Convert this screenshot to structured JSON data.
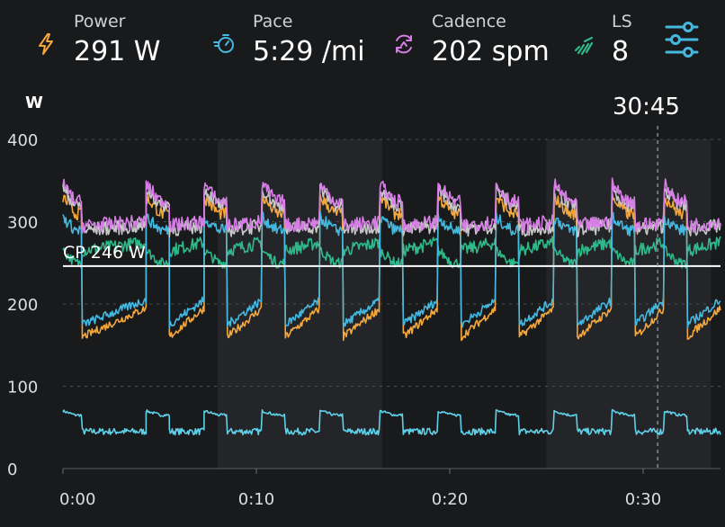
{
  "metrics": [
    {
      "name": "power",
      "label": "Power",
      "value": "291 W",
      "icon": "lightning-icon",
      "color": "#f4a73c"
    },
    {
      "name": "pace",
      "label": "Pace",
      "value": "5:29 /mi",
      "icon": "stopwatch-icon",
      "color": "#45b8e0"
    },
    {
      "name": "cadence",
      "label": "Cadence",
      "value": "202 spm",
      "icon": "cadence-cycle-icon",
      "color": "#d67ee6"
    },
    {
      "name": "ls",
      "label": "LS",
      "value": "8",
      "icon": "leg-spring-icon",
      "color": "#2fb88a"
    }
  ],
  "settings_icon": "settings-sliders-icon",
  "accent_color": "#45b8e0",
  "cursor_time": "30:45",
  "chart_data": {
    "type": "line",
    "ylabel": "W",
    "ylim": [
      0,
      400
    ],
    "yticks": [
      0,
      100,
      200,
      300,
      400
    ],
    "xlim": [
      0,
      34
    ],
    "xticks": [
      0,
      10,
      20,
      30
    ],
    "xtick_labels": [
      "0:00",
      "0:10",
      "0:20",
      "0:30"
    ],
    "x_unit": "minutes",
    "cursor_x": 30.75,
    "reference_line": {
      "label": "CP 246 W",
      "value": 246
    },
    "shaded_bands": [
      [
        8,
        16.5
      ],
      [
        25,
        33.5
      ]
    ],
    "intervals": {
      "starts": [
        0,
        4.3,
        7.3,
        10.3,
        13.3,
        16.4,
        19.4,
        22.4,
        25.4,
        28.4,
        31.1
      ],
      "work_end": [
        1.0,
        5.5,
        8.5,
        11.5,
        14.5,
        17.6,
        20.6,
        23.6,
        26.6,
        29.6,
        32.3
      ]
    },
    "series": [
      {
        "color": "#f4a73c",
        "work": 310,
        "work_peak": 330,
        "recovery": 160,
        "recovery_end": 195
      },
      {
        "color": "#45b8e0",
        "work": 290,
        "work_peak": 305,
        "recovery": 175,
        "recovery_end": 205
      },
      {
        "color": "#d67ee6",
        "work": 325,
        "work_peak": 345,
        "recovery": 295,
        "recovery_end": 300
      },
      {
        "color": "#c8c8c8",
        "work": 320,
        "work_peak": 340,
        "recovery": 290,
        "recovery_end": 295
      },
      {
        "color": "#2fb88a",
        "work": 250,
        "work_peak": 265,
        "recovery": 265,
        "recovery_end": 275
      },
      {
        "color": "#5fd0e8",
        "work": 65,
        "work_peak": 70,
        "recovery": 45,
        "recovery_end": 45
      }
    ]
  }
}
